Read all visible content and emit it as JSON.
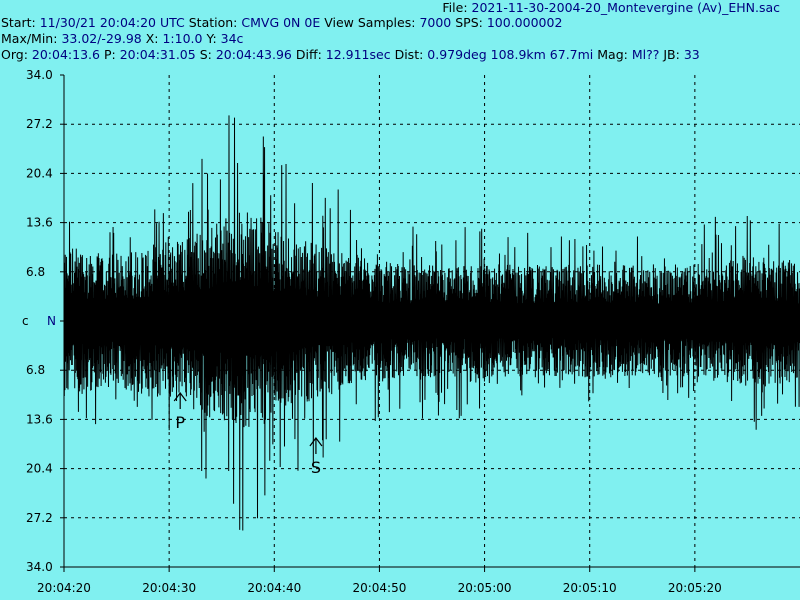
{
  "header": {
    "file_label": "File:",
    "file_value": "2021-11-30-2004-20_Montevergine (Av)_EHN.sac",
    "start_label": "Start:",
    "start_value": "11/30/21 20:04:20 UTC",
    "station_label": "Station:",
    "station_value": "CMVG 0N 0E",
    "view_samples_label": "View Samples:",
    "view_samples_value": "7000",
    "sps_label": "SPS:",
    "sps_value": "100.000002",
    "maxmin_label": "Max/Min:",
    "maxmin_value": "33.02/-29.98",
    "x_label": "X:",
    "x_value": "1:10.0",
    "y_label": "Y:",
    "y_value": "34c",
    "org_label": "Org:",
    "org_value": "20:04:13.6",
    "p_label": "P:",
    "p_value": "20:04:31.05",
    "s_label": "S:",
    "s_value": "20:04:43.96",
    "diff_label": "Diff:",
    "diff_value": "12.911sec",
    "dist_label": "Dist:",
    "dist_value": "0.979deg 108.9km 67.7mi",
    "mag_label": "Mag:",
    "mag_value": "Ml??",
    "jb_label": "JB:",
    "jb_value": "33"
  },
  "channel": {
    "c_label": "c",
    "n_label": "N"
  },
  "colors": {
    "background": "#80F0F0",
    "trace": "#000000",
    "grid": "#000000",
    "header_value": "#000080"
  },
  "chart_data": {
    "type": "line",
    "title": "",
    "xlabel": "",
    "ylabel": "",
    "y_tick_labels": [
      "34.0",
      "27.2",
      "20.4",
      "13.6",
      "6.8",
      "c",
      "6.8",
      "13.6",
      "20.4",
      "27.2",
      "34.0"
    ],
    "ylim": [
      -34.0,
      34.0
    ],
    "x_tick_labels": [
      "20:04:20",
      "20:04:30",
      "20:04:40",
      "20:04:50",
      "20:05:00",
      "20:05:10",
      "20:05:20"
    ],
    "x_range_seconds": [
      0,
      70
    ],
    "grid": true,
    "series": [
      {
        "max": 33.02,
        "min": -29.98,
        "envelope_time_s": [
          0,
          1,
          4,
          8,
          11,
          15,
          17,
          19,
          22,
          25,
          28,
          32,
          36,
          40,
          44,
          48,
          52,
          56,
          60,
          64,
          66,
          68,
          70
        ],
        "envelope_amp": [
          19,
          16,
          14,
          15,
          18,
          27,
          33,
          27,
          22,
          20,
          16,
          13,
          14,
          13,
          13,
          12,
          12,
          12,
          13,
          16,
          17,
          14,
          12
        ],
        "baseline_amp": [
          8,
          8,
          7,
          8,
          9,
          11,
          12,
          11,
          9,
          8,
          7,
          6,
          6,
          6,
          6,
          6,
          6,
          6,
          6,
          7,
          7,
          7,
          6
        ]
      }
    ],
    "annotations": [
      {
        "label": "P",
        "time": "20:04:31.05",
        "t_s": 11.05
      },
      {
        "label": "S",
        "time": "20:04:43.96",
        "t_s": 23.96
      }
    ]
  }
}
